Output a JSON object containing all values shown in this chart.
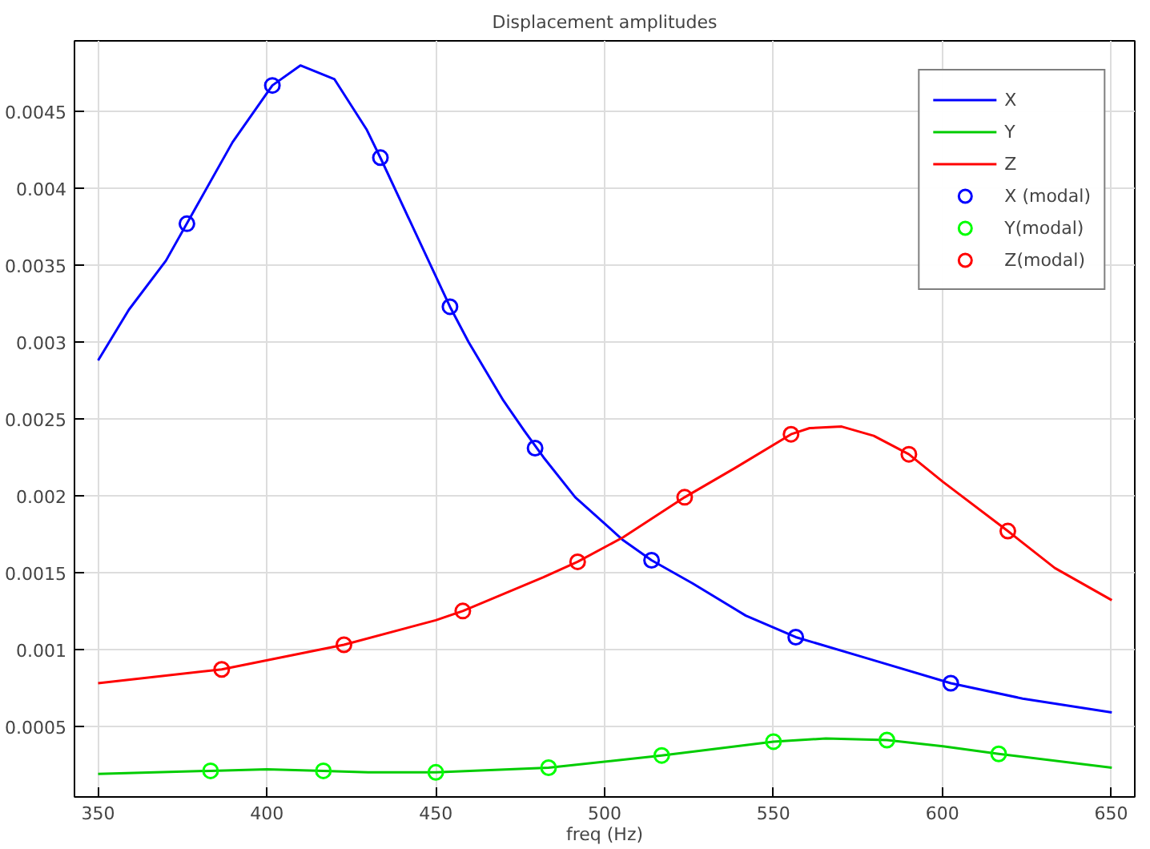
{
  "chart_data": {
    "type": "line",
    "title": "Displacement amplitudes",
    "xlabel": "freq (Hz)",
    "xlim": [
      343,
      657
    ],
    "ylim": [
      4e-05,
      0.00496
    ],
    "xticks": [
      350,
      400,
      450,
      500,
      550,
      600,
      650
    ],
    "yticks": [
      0.0005,
      0.001,
      0.0015,
      0.002,
      0.0025,
      0.003,
      0.0035,
      0.004,
      0.0045
    ],
    "grid": true,
    "legend": "top right",
    "series": [
      {
        "name": "X",
        "color": "#0000ff",
        "line_style": "solid",
        "marker": "none",
        "x": [
          350,
          359.1,
          370.1,
          389.8,
          401.6,
          409.9,
          420,
          429.6,
          433.8,
          454.2,
          459.7,
          470,
          476.3,
          481.9,
          491.3,
          505.5,
          513.9,
          526,
          541.8,
          556.6,
          576.5,
          602.5,
          623.8,
          650.2
        ],
        "values": [
          0.00288,
          0.00321,
          0.00353,
          0.0043,
          0.00467,
          0.0048,
          0.00471,
          0.00438,
          0.00419,
          0.00323,
          0.003,
          0.00262,
          0.00242,
          0.00225,
          0.00199,
          0.00171,
          0.00158,
          0.00143,
          0.00122,
          0.00108,
          0.00095,
          0.00078,
          0.00068,
          0.00059
        ]
      },
      {
        "name": "Y",
        "color": "#00cc00",
        "line_style": "solid",
        "marker": "none",
        "x": [
          350,
          383.3,
          400,
          416.7,
          430,
          450,
          483.4,
          516.9,
          550,
          565.5,
          583.6,
          600.2,
          616.7,
          650.2
        ],
        "values": [
          0.00019,
          0.00021,
          0.00022,
          0.00021,
          0.0002,
          0.0002,
          0.00023,
          0.00031,
          0.0004,
          0.00042,
          0.00041,
          0.00037,
          0.00032,
          0.00023
        ]
      },
      {
        "name": "Z",
        "color": "#ff0000",
        "line_style": "solid",
        "marker": "none",
        "x": [
          350,
          386.6,
          422.8,
          450,
          458,
          481.9,
          492,
          505.5,
          523.7,
          538.6,
          555.2,
          560.7,
          570.2,
          579.7,
          590.1,
          600.2,
          619.4,
          633.3,
          650.2
        ],
        "values": [
          0.00078,
          0.00087,
          0.00103,
          0.00119,
          0.00125,
          0.00147,
          0.00157,
          0.00173,
          0.00199,
          0.00218,
          0.0024,
          0.00244,
          0.00245,
          0.00239,
          0.00227,
          0.00209,
          0.00177,
          0.00153,
          0.00132
        ]
      },
      {
        "name": "X (modal)",
        "type": "scatter",
        "color": "#0000ff",
        "marker": "circle",
        "x": [
          376.3,
          401.6,
          433.6,
          454.2,
          479.4,
          513.9,
          556.6,
          602.5
        ],
        "values": [
          0.00377,
          0.00467,
          0.0042,
          0.00323,
          0.00231,
          0.00158,
          0.00108,
          0.00078
        ]
      },
      {
        "name": "Y(modal)",
        "type": "scatter",
        "color": "#00ff00",
        "marker": "circle",
        "x": [
          383.3,
          416.7,
          450,
          483.4,
          516.9,
          550,
          583.6,
          616.7
        ],
        "values": [
          0.00021,
          0.00021,
          0.0002,
          0.00023,
          0.00031,
          0.0004,
          0.00041,
          0.00032
        ]
      },
      {
        "name": "Z(modal)",
        "type": "scatter",
        "color": "#ff0000",
        "marker": "circle",
        "x": [
          386.6,
          422.8,
          458,
          492,
          523.7,
          555.2,
          590.1,
          619.4
        ],
        "values": [
          0.00087,
          0.00103,
          0.00125,
          0.00157,
          0.00199,
          0.0024,
          0.00227,
          0.00177
        ]
      }
    ]
  }
}
